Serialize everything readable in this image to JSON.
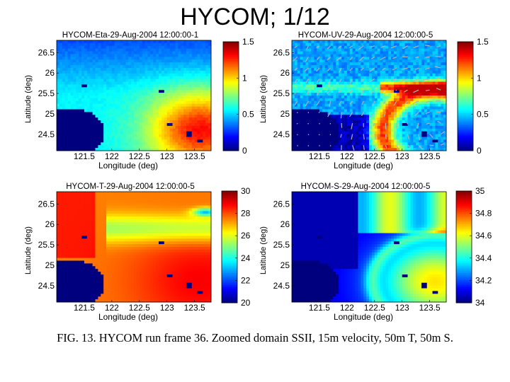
{
  "slide": {
    "title": "HYCOM; 1/12",
    "caption": "FIG. 13. HYCOM run frame 36. Zoomed domain SSII, 15m velocity, 50m T, 50m S."
  },
  "chart_data": [
    {
      "type": "heatmap",
      "title": "HYCOM-Eta-29-Aug-2004 12:00:00-1",
      "xlabel": "Longitude (deg)",
      "ylabel": "Latitude (deg)",
      "x_ticks": [
        "121.5",
        "122",
        "122.5",
        "123",
        "123.5"
      ],
      "y_ticks": [
        "26.5",
        "26",
        "25.5",
        "25",
        "24.5"
      ],
      "xlim": [
        121.0,
        123.8
      ],
      "ylim": [
        24.1,
        26.8
      ],
      "colorbar": {
        "ticks": [
          "1.5",
          "1",
          "0.5",
          "0"
        ],
        "min": 0,
        "max": 1.5
      },
      "field": "eta",
      "vectors": false
    },
    {
      "type": "heatmap",
      "title": "HYCOM-UV-29-Aug-2004 12:00:00-5",
      "xlabel": "Longitude (deg)",
      "ylabel": "Latitude (deg)",
      "x_ticks": [
        "121.5",
        "122",
        "122.5",
        "123",
        "123.5"
      ],
      "y_ticks": [
        "26.5",
        "26",
        "25.5",
        "25",
        "24.5"
      ],
      "xlim": [
        121.0,
        123.8
      ],
      "ylim": [
        24.1,
        26.8
      ],
      "colorbar": {
        "ticks": [
          "1.5",
          "1",
          "0.5",
          "0"
        ],
        "min": 0,
        "max": 1.5
      },
      "field": "speed",
      "vectors": true
    },
    {
      "type": "heatmap",
      "title": "HYCOM-T-29-Aug-2004 12:00:00-5",
      "xlabel": "Longitude (deg)",
      "ylabel": "Latitude (deg)",
      "x_ticks": [
        "121.5",
        "122",
        "122.5",
        "123",
        "123.5"
      ],
      "y_ticks": [
        "26.5",
        "26",
        "25.5",
        "25",
        "24.5"
      ],
      "xlim": [
        121.0,
        123.8
      ],
      "ylim": [
        24.1,
        26.8
      ],
      "colorbar": {
        "ticks": [
          "30",
          "28",
          "26",
          "24",
          "22",
          "20"
        ],
        "min": 20,
        "max": 30
      },
      "field": "temperature",
      "vectors": false
    },
    {
      "type": "heatmap",
      "title": "HYCOM-S-29-Aug-2004 12:00:00-5",
      "xlabel": "Longitude (deg)",
      "ylabel": "Latitude (deg)",
      "x_ticks": [
        "121.5",
        "122",
        "122.5",
        "123",
        "123.5"
      ],
      "y_ticks": [
        "26.5",
        "26",
        "25.5",
        "25",
        "24.5"
      ],
      "xlim": [
        121.0,
        123.8
      ],
      "ylim": [
        24.1,
        26.8
      ],
      "colorbar": {
        "ticks": [
          "35",
          "34.8",
          "34.6",
          "34.4",
          "34.2",
          "34"
        ],
        "min": 34,
        "max": 35
      },
      "field": "salinity",
      "vectors": false
    }
  ]
}
